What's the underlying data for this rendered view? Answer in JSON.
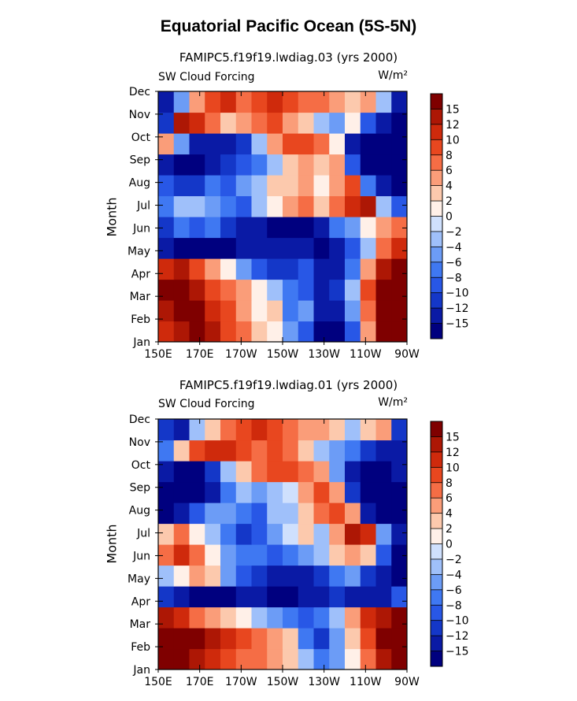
{
  "title": "Equatorial Pacific Ocean (5S-5N)",
  "colors": {
    "levels_palette": [
      "#00007f",
      "#0a1aa5",
      "#1437c8",
      "#2857e6",
      "#3f78f2",
      "#6c9cf6",
      "#9fc0fa",
      "#cfe0fd",
      "#fff0e8",
      "#fcc9ad",
      "#fa9d79",
      "#f56d45",
      "#e8471f",
      "#cf2a0c",
      "#ad1705",
      "#7f0000"
    ]
  },
  "chart_data": [
    {
      "type": "heatmap",
      "subtitle": "FAMIPC5.f19f19.lwdiag.03 (yrs 2000)",
      "variable": "SW Cloud Forcing",
      "units": "W/m²",
      "xlabel": "",
      "ylabel": "Month",
      "x_ticks": [
        "150E",
        "170E",
        "170W",
        "150W",
        "130W",
        "110W",
        "90W"
      ],
      "y_ticks": [
        "Jan",
        "Feb",
        "Mar",
        "Apr",
        "May",
        "Jun",
        "Jul",
        "Aug",
        "Sep",
        "Oct",
        "Nov",
        "Dec"
      ],
      "colorbar_labels": [
        "15",
        "12",
        "10",
        "8",
        "6",
        "4",
        "2",
        "0",
        "−2",
        "−4",
        "−6",
        "−8",
        "−10",
        "−12",
        "−15"
      ],
      "values": [
        [
          12,
          15,
          16,
          14,
          10,
          7,
          3,
          1,
          -4,
          -8,
          -16,
          -16,
          -8,
          6,
          16,
          16
        ],
        [
          14,
          16,
          16,
          12,
          9,
          6,
          2,
          3,
          -6,
          -4,
          -12,
          -14,
          -4,
          8,
          16,
          16
        ],
        [
          16,
          16,
          14,
          10,
          7,
          5,
          2,
          -2,
          -6,
          -8,
          -12,
          -10,
          -2,
          10,
          16,
          16
        ],
        [
          12,
          14,
          10,
          6,
          2,
          -4,
          -8,
          -10,
          -10,
          -8,
          -12,
          -14,
          -6,
          6,
          14,
          16
        ],
        [
          -12,
          -16,
          -16,
          -16,
          -16,
          -14,
          -14,
          -14,
          -14,
          -14,
          -16,
          -14,
          -8,
          -2,
          8,
          12
        ],
        [
          -10,
          -6,
          -8,
          -6,
          -10,
          -12,
          -12,
          -16,
          -16,
          -16,
          -12,
          -6,
          -4,
          2,
          6,
          8
        ],
        [
          -6,
          -2,
          -2,
          -4,
          -6,
          -8,
          -2,
          2,
          6,
          8,
          4,
          8,
          12,
          14,
          -2,
          -8
        ],
        [
          -8,
          -10,
          -10,
          -6,
          -8,
          -4,
          -2,
          4,
          4,
          6,
          2,
          6,
          10,
          -6,
          -14,
          -16
        ],
        [
          -14,
          -16,
          -16,
          -12,
          -10,
          -8,
          -6,
          -2,
          4,
          6,
          4,
          6,
          -8,
          -16,
          -16,
          -16
        ],
        [
          6,
          -4,
          -12,
          -14,
          -14,
          -10,
          -2,
          6,
          10,
          10,
          8,
          2,
          -12,
          -16,
          -16,
          -16
        ],
        [
          -10,
          14,
          12,
          8,
          4,
          6,
          8,
          10,
          6,
          4,
          -2,
          -4,
          2,
          -8,
          -14,
          -16
        ],
        [
          -14,
          -4,
          6,
          10,
          12,
          8,
          10,
          12,
          10,
          8,
          8,
          6,
          4,
          6,
          -2,
          -12
        ]
      ]
    },
    {
      "type": "heatmap",
      "subtitle": "FAMIPC5.f19f19.lwdiag.01 (yrs 2000)",
      "variable": "SW Cloud Forcing",
      "units": "W/m²",
      "xlabel": "",
      "ylabel": "Month",
      "x_ticks": [
        "150E",
        "170E",
        "170W",
        "150W",
        "130W",
        "110W",
        "90W"
      ],
      "y_ticks": [
        "Jan",
        "Feb",
        "Mar",
        "Apr",
        "May",
        "Jun",
        "Jul",
        "Aug",
        "Sep",
        "Oct",
        "Nov",
        "Dec"
      ],
      "colorbar_labels": [
        "15",
        "12",
        "10",
        "8",
        "6",
        "4",
        "2",
        "0",
        "−2",
        "−4",
        "−6",
        "−8",
        "−10",
        "−12",
        "−15"
      ],
      "values": [
        [
          16,
          16,
          14,
          12,
          10,
          8,
          7,
          6,
          4,
          -2,
          -6,
          -4,
          2,
          8,
          14,
          16
        ],
        [
          16,
          16,
          16,
          14,
          12,
          10,
          8,
          6,
          4,
          -6,
          -10,
          -4,
          4,
          10,
          16,
          16
        ],
        [
          14,
          12,
          8,
          6,
          4,
          2,
          -2,
          -4,
          -6,
          -8,
          -6,
          -2,
          6,
          12,
          14,
          16
        ],
        [
          -10,
          -14,
          -16,
          -16,
          -16,
          -14,
          -14,
          -16,
          -16,
          -14,
          -12,
          -10,
          -12,
          -14,
          -12,
          -8
        ],
        [
          -2,
          2,
          6,
          4,
          -4,
          -8,
          -10,
          -12,
          -14,
          -12,
          -10,
          -6,
          -4,
          -10,
          -14,
          -16
        ],
        [
          8,
          12,
          8,
          2,
          -4,
          -6,
          -6,
          -8,
          -6,
          -4,
          -2,
          4,
          6,
          4,
          -8,
          -16
        ],
        [
          4,
          8,
          2,
          -2,
          -6,
          -10,
          -8,
          -4,
          0,
          4,
          -2,
          6,
          14,
          12,
          -4,
          -12
        ],
        [
          -16,
          -14,
          -8,
          -4,
          -4,
          -6,
          -8,
          -2,
          -2,
          4,
          8,
          10,
          6,
          -12,
          -16,
          -16
        ],
        [
          -16,
          -16,
          -16,
          -12,
          -6,
          -2,
          -4,
          -2,
          0,
          6,
          10,
          6,
          -10,
          -16,
          -16,
          -16
        ],
        [
          -14,
          -16,
          -16,
          -10,
          -2,
          4,
          8,
          10,
          10,
          8,
          6,
          -4,
          -12,
          -16,
          -16,
          -14
        ],
        [
          -6,
          4,
          10,
          12,
          12,
          10,
          8,
          10,
          8,
          4,
          -2,
          -4,
          -6,
          -10,
          -14,
          -12
        ],
        [
          -10,
          -12,
          -2,
          4,
          8,
          10,
          12,
          10,
          8,
          6,
          6,
          4,
          -2,
          4,
          6,
          -10
        ]
      ]
    }
  ]
}
